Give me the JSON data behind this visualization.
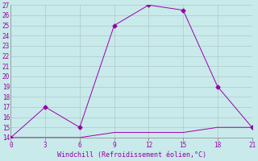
{
  "line1_x": [
    0,
    3,
    6,
    9,
    12,
    15,
    18,
    21
  ],
  "line1_y": [
    14,
    17,
    15,
    25,
    27,
    26.5,
    19,
    15
  ],
  "line2_x": [
    0,
    3,
    6,
    9,
    12,
    15,
    18,
    21
  ],
  "line2_y": [
    14,
    14,
    14,
    14.5,
    14.5,
    14.5,
    15,
    15
  ],
  "line_color": "#9900aa",
  "marker": "D",
  "marker_size": 2.5,
  "xlabel": "Windchill (Refroidissement éolien,°C)",
  "xlim": [
    0,
    21
  ],
  "ylim": [
    14,
    27
  ],
  "xticks": [
    0,
    3,
    6,
    9,
    12,
    15,
    18,
    21
  ],
  "yticks": [
    14,
    15,
    16,
    17,
    18,
    19,
    20,
    21,
    22,
    23,
    24,
    25,
    26,
    27
  ],
  "background_color": "#c8eaea",
  "grid_color": "#b0c8c8"
}
